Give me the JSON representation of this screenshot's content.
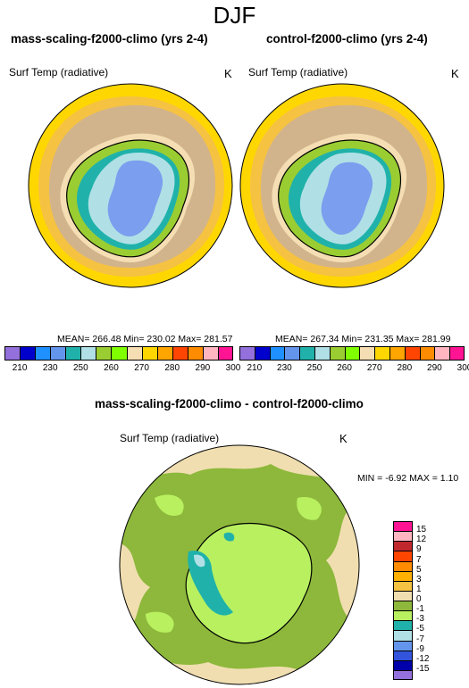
{
  "figure": {
    "title": "DJF"
  },
  "panels": [
    {
      "id": "left",
      "title": "mass-scaling-f2000-climo (yrs 2-4)",
      "variable": "Surf Temp (radiative)",
      "units": "K",
      "stats": "MEAN= 266.48  Min= 230.02  Max= 281.57"
    },
    {
      "id": "right",
      "title": "control-f2000-climo (yrs 2-4)",
      "variable": "Surf Temp (radiative)",
      "units": "K",
      "stats": "MEAN= 267.34  Min= 231.35  Max= 281.99"
    },
    {
      "id": "diff",
      "title": "mass-scaling-f2000-climo - control-f2000-climo",
      "variable": "Surf Temp (radiative)",
      "units": "K",
      "stats": "MIN =  -6.92 MAX =   1.10"
    }
  ],
  "colorbars": {
    "temperature": {
      "labels": [
        "210",
        "230",
        "250",
        "260",
        "270",
        "280",
        "290",
        "300"
      ],
      "colors": [
        "#9370db",
        "#0000cd",
        "#1e90ff",
        "#6495ed",
        "#20b2aa",
        "#b0e0e6",
        "#9acd32",
        "#7fff00",
        "#f5deb3",
        "#ffd700",
        "#ffa500",
        "#ff4500",
        "#ff8c00",
        "#ffb6c1",
        "#ff1493"
      ]
    },
    "difference": {
      "labels": [
        "15",
        "12",
        "9",
        "7",
        "5",
        "3",
        "1",
        "0",
        "-1",
        "-3",
        "-5",
        "-7",
        "-9",
        "-12",
        "-15"
      ],
      "colors": [
        "#ff1493",
        "#ffb6c1",
        "#c0282d",
        "#ff4500",
        "#ff8c00",
        "#ffb000",
        "#f5c242",
        "#f0deb0",
        "#8db83b",
        "#b8f060",
        "#20b2aa",
        "#b0e0e6",
        "#6495ed",
        "#3355dd",
        "#0000aa",
        "#9370db"
      ]
    }
  },
  "map_colors": {
    "ocean_warm": "#ffd700",
    "ocean_mid": "#f5c242",
    "ocean_cool": "#d2b48c",
    "ice_edge": "#f5deb3",
    "land_rim": "#9acd32",
    "land_mid": "#20b2aa",
    "land_inner": "#b0e0e6",
    "plateau": "#7b9eee",
    "diff_base": "#8db83b",
    "diff_light": "#b8f060",
    "diff_sand": "#f0deb0",
    "diff_teal": "#20b2aa"
  }
}
